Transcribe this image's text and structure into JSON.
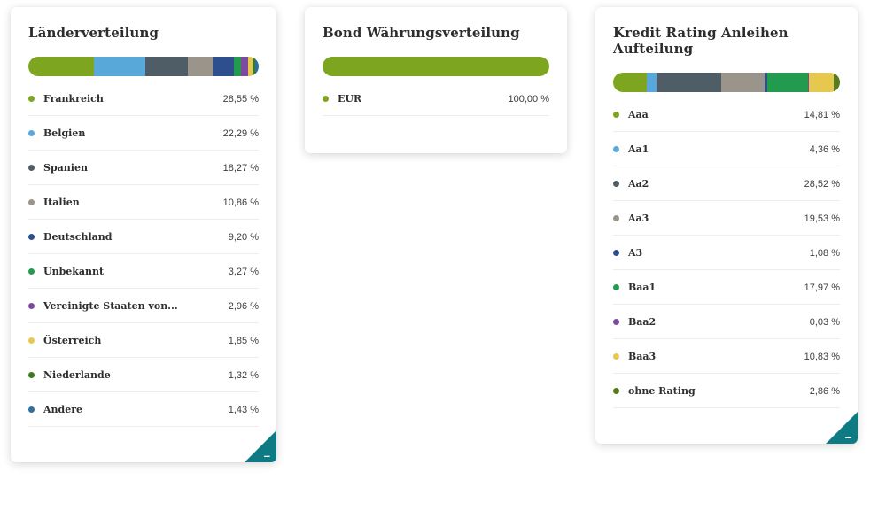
{
  "accent": {
    "corner_color": "#0d7a84",
    "minus_icon": "–"
  },
  "cards": [
    {
      "title": "Länderverteilung",
      "items": [
        {
          "label": "Frankreich",
          "value": 28.55,
          "display": "28,55 %",
          "color": "#7da51f"
        },
        {
          "label": "Belgien",
          "value": 22.29,
          "display": "22,29 %",
          "color": "#58a8d9"
        },
        {
          "label": "Spanien",
          "value": 18.27,
          "display": "18,27 %",
          "color": "#4f5d66"
        },
        {
          "label": "Italien",
          "value": 10.86,
          "display": "10,86 %",
          "color": "#9b948a"
        },
        {
          "label": "Deutschland",
          "value": 9.2,
          "display": "9,20 %",
          "color": "#2d4f8e"
        },
        {
          "label": "Unbekannt",
          "value": 3.27,
          "display": "3,27 %",
          "color": "#229b4e"
        },
        {
          "label": "Vereinigte Staaten von...",
          "value": 2.96,
          "display": "2,96 %",
          "color": "#7c4ba0"
        },
        {
          "label": "Österreich",
          "value": 1.85,
          "display": "1,85 %",
          "color": "#e6c84e"
        },
        {
          "label": "Niederlande",
          "value": 1.32,
          "display": "1,32 %",
          "color": "#3f7a22"
        },
        {
          "label": "Andere",
          "value": 1.43,
          "display": "1,43 %",
          "color": "#2f6fa0"
        }
      ]
    },
    {
      "title": "Bond Währungsverteilung",
      "items": [
        {
          "label": "EUR",
          "value": 100.0,
          "display": "100,00 %",
          "color": "#7da51f"
        }
      ]
    },
    {
      "title": "Kredit Rating Anleihen Aufteilung",
      "items": [
        {
          "label": "Aaa",
          "value": 14.81,
          "display": "14,81 %",
          "color": "#7da51f"
        },
        {
          "label": "Aa1",
          "value": 4.36,
          "display": "4,36 %",
          "color": "#58a8d9"
        },
        {
          "label": "Aa2",
          "value": 28.52,
          "display": "28,52 %",
          "color": "#4f5d66"
        },
        {
          "label": "Aa3",
          "value": 19.53,
          "display": "19,53 %",
          "color": "#9b948a"
        },
        {
          "label": "A3",
          "value": 1.08,
          "display": "1,08 %",
          "color": "#2d4f8e"
        },
        {
          "label": "Baa1",
          "value": 17.97,
          "display": "17,97 %",
          "color": "#229b4e"
        },
        {
          "label": "Baa2",
          "value": 0.03,
          "display": "0,03 %",
          "color": "#7c4ba0"
        },
        {
          "label": "Baa3",
          "value": 10.83,
          "display": "10,83 %",
          "color": "#e6c84e"
        },
        {
          "label": "ohne Rating",
          "value": 2.86,
          "display": "2,86 %",
          "color": "#567a1e"
        }
      ]
    }
  ],
  "chart_data": [
    {
      "type": "bar",
      "orientation": "horizontal",
      "stacked": true,
      "title": "Länderverteilung",
      "categories": [
        "Frankreich",
        "Belgien",
        "Spanien",
        "Italien",
        "Deutschland",
        "Unbekannt",
        "Vereinigte Staaten von...",
        "Österreich",
        "Niederlande",
        "Andere"
      ],
      "values": [
        28.55,
        22.29,
        18.27,
        10.86,
        9.2,
        3.27,
        2.96,
        1.85,
        1.32,
        1.43
      ],
      "colors": [
        "#7da51f",
        "#58a8d9",
        "#4f5d66",
        "#9b948a",
        "#2d4f8e",
        "#229b4e",
        "#7c4ba0",
        "#e6c84e",
        "#3f7a22",
        "#2f6fa0"
      ],
      "value_format": "percent",
      "legend_position": "below"
    },
    {
      "type": "bar",
      "orientation": "horizontal",
      "stacked": true,
      "title": "Bond Währungsverteilung",
      "categories": [
        "EUR"
      ],
      "values": [
        100.0
      ],
      "colors": [
        "#7da51f"
      ],
      "value_format": "percent",
      "legend_position": "below"
    },
    {
      "type": "bar",
      "orientation": "horizontal",
      "stacked": true,
      "title": "Kredit Rating Anleihen Aufteilung",
      "categories": [
        "Aaa",
        "Aa1",
        "Aa2",
        "Aa3",
        "A3",
        "Baa1",
        "Baa2",
        "Baa3",
        "ohne Rating"
      ],
      "values": [
        14.81,
        4.36,
        28.52,
        19.53,
        1.08,
        17.97,
        0.03,
        10.83,
        2.86
      ],
      "colors": [
        "#7da51f",
        "#58a8d9",
        "#4f5d66",
        "#9b948a",
        "#2d4f8e",
        "#229b4e",
        "#7c4ba0",
        "#e6c84e",
        "#567a1e"
      ],
      "value_format": "percent",
      "legend_position": "below"
    }
  ]
}
